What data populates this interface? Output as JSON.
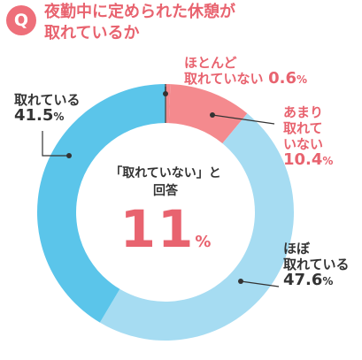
{
  "header": {
    "badge": "Q",
    "question_line1": "夜勤中に定められた休憩が",
    "question_line2": "取れているか"
  },
  "center": {
    "line1": "「取れていない」と",
    "line2": "回答",
    "value": "11",
    "unit": "%"
  },
  "labels": {
    "hotondo_line1": "ほとんど",
    "hotondo_line2": "取れていない",
    "hotondo_value": "0.6",
    "amari_line1": "あまり",
    "amari_line2": "取れて",
    "amari_line3": "いない",
    "amari_value": "10.4",
    "hobo_line1": "ほぼ",
    "hobo_line2": "取れている",
    "hobo_value": "47.6",
    "toreteiru_line1": "取れている",
    "toreteiru_value": "41.5",
    "unit": "%"
  },
  "chart_data": {
    "type": "pie",
    "donut": true,
    "title": "夜勤中に定められた休憩が取れているか",
    "categories": [
      "ほとんど取れていない",
      "あまり取れていない",
      "ほぼ取れている",
      "取れている"
    ],
    "values": [
      0.6,
      10.4,
      47.6,
      41.5
    ],
    "unit": "%",
    "start": "top, clockwise",
    "colors": [
      "#f48a8e",
      "#f48a8e",
      "#a6dcf2",
      "#5bc5ea"
    ]
  },
  "colors": {
    "accent": "#e8636f",
    "light_blue": "#a6dcf2",
    "blue": "#5bc5ea",
    "pink": "#f48a8e"
  }
}
